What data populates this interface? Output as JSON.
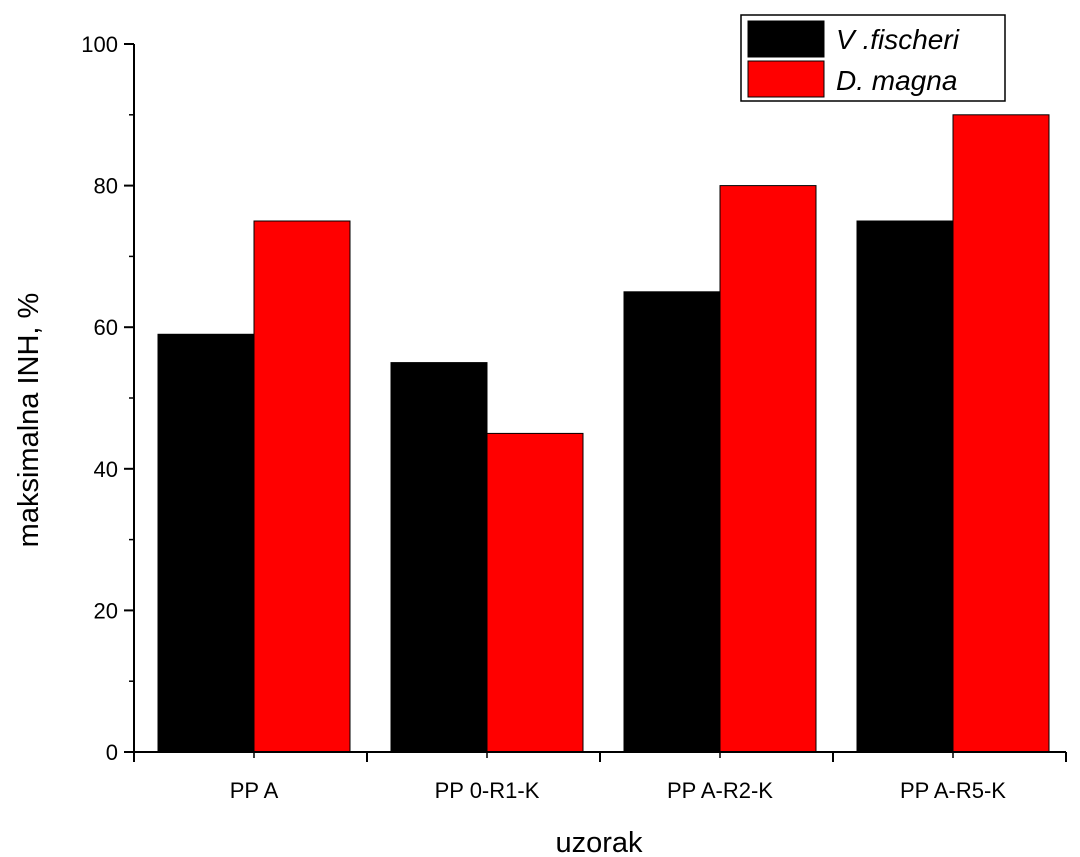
{
  "chart_data": {
    "type": "bar",
    "title": "",
    "xlabel": "uzorak",
    "ylabel": "maksimalna INH, %",
    "categories": [
      "PP A",
      "PP 0-R1-K",
      "PP A-R2-K",
      "PP A-R5-K"
    ],
    "series": [
      {
        "name": "V .fischeri",
        "color": "#000000",
        "values": [
          59,
          55,
          65,
          75
        ]
      },
      {
        "name": "D. magna",
        "color": "#ff0000",
        "values": [
          75,
          45,
          80,
          90
        ]
      }
    ],
    "ylim": [
      0,
      100
    ],
    "yticks": [
      0,
      20,
      40,
      60,
      80,
      100
    ],
    "grid": false,
    "legend_position": "top-right"
  }
}
